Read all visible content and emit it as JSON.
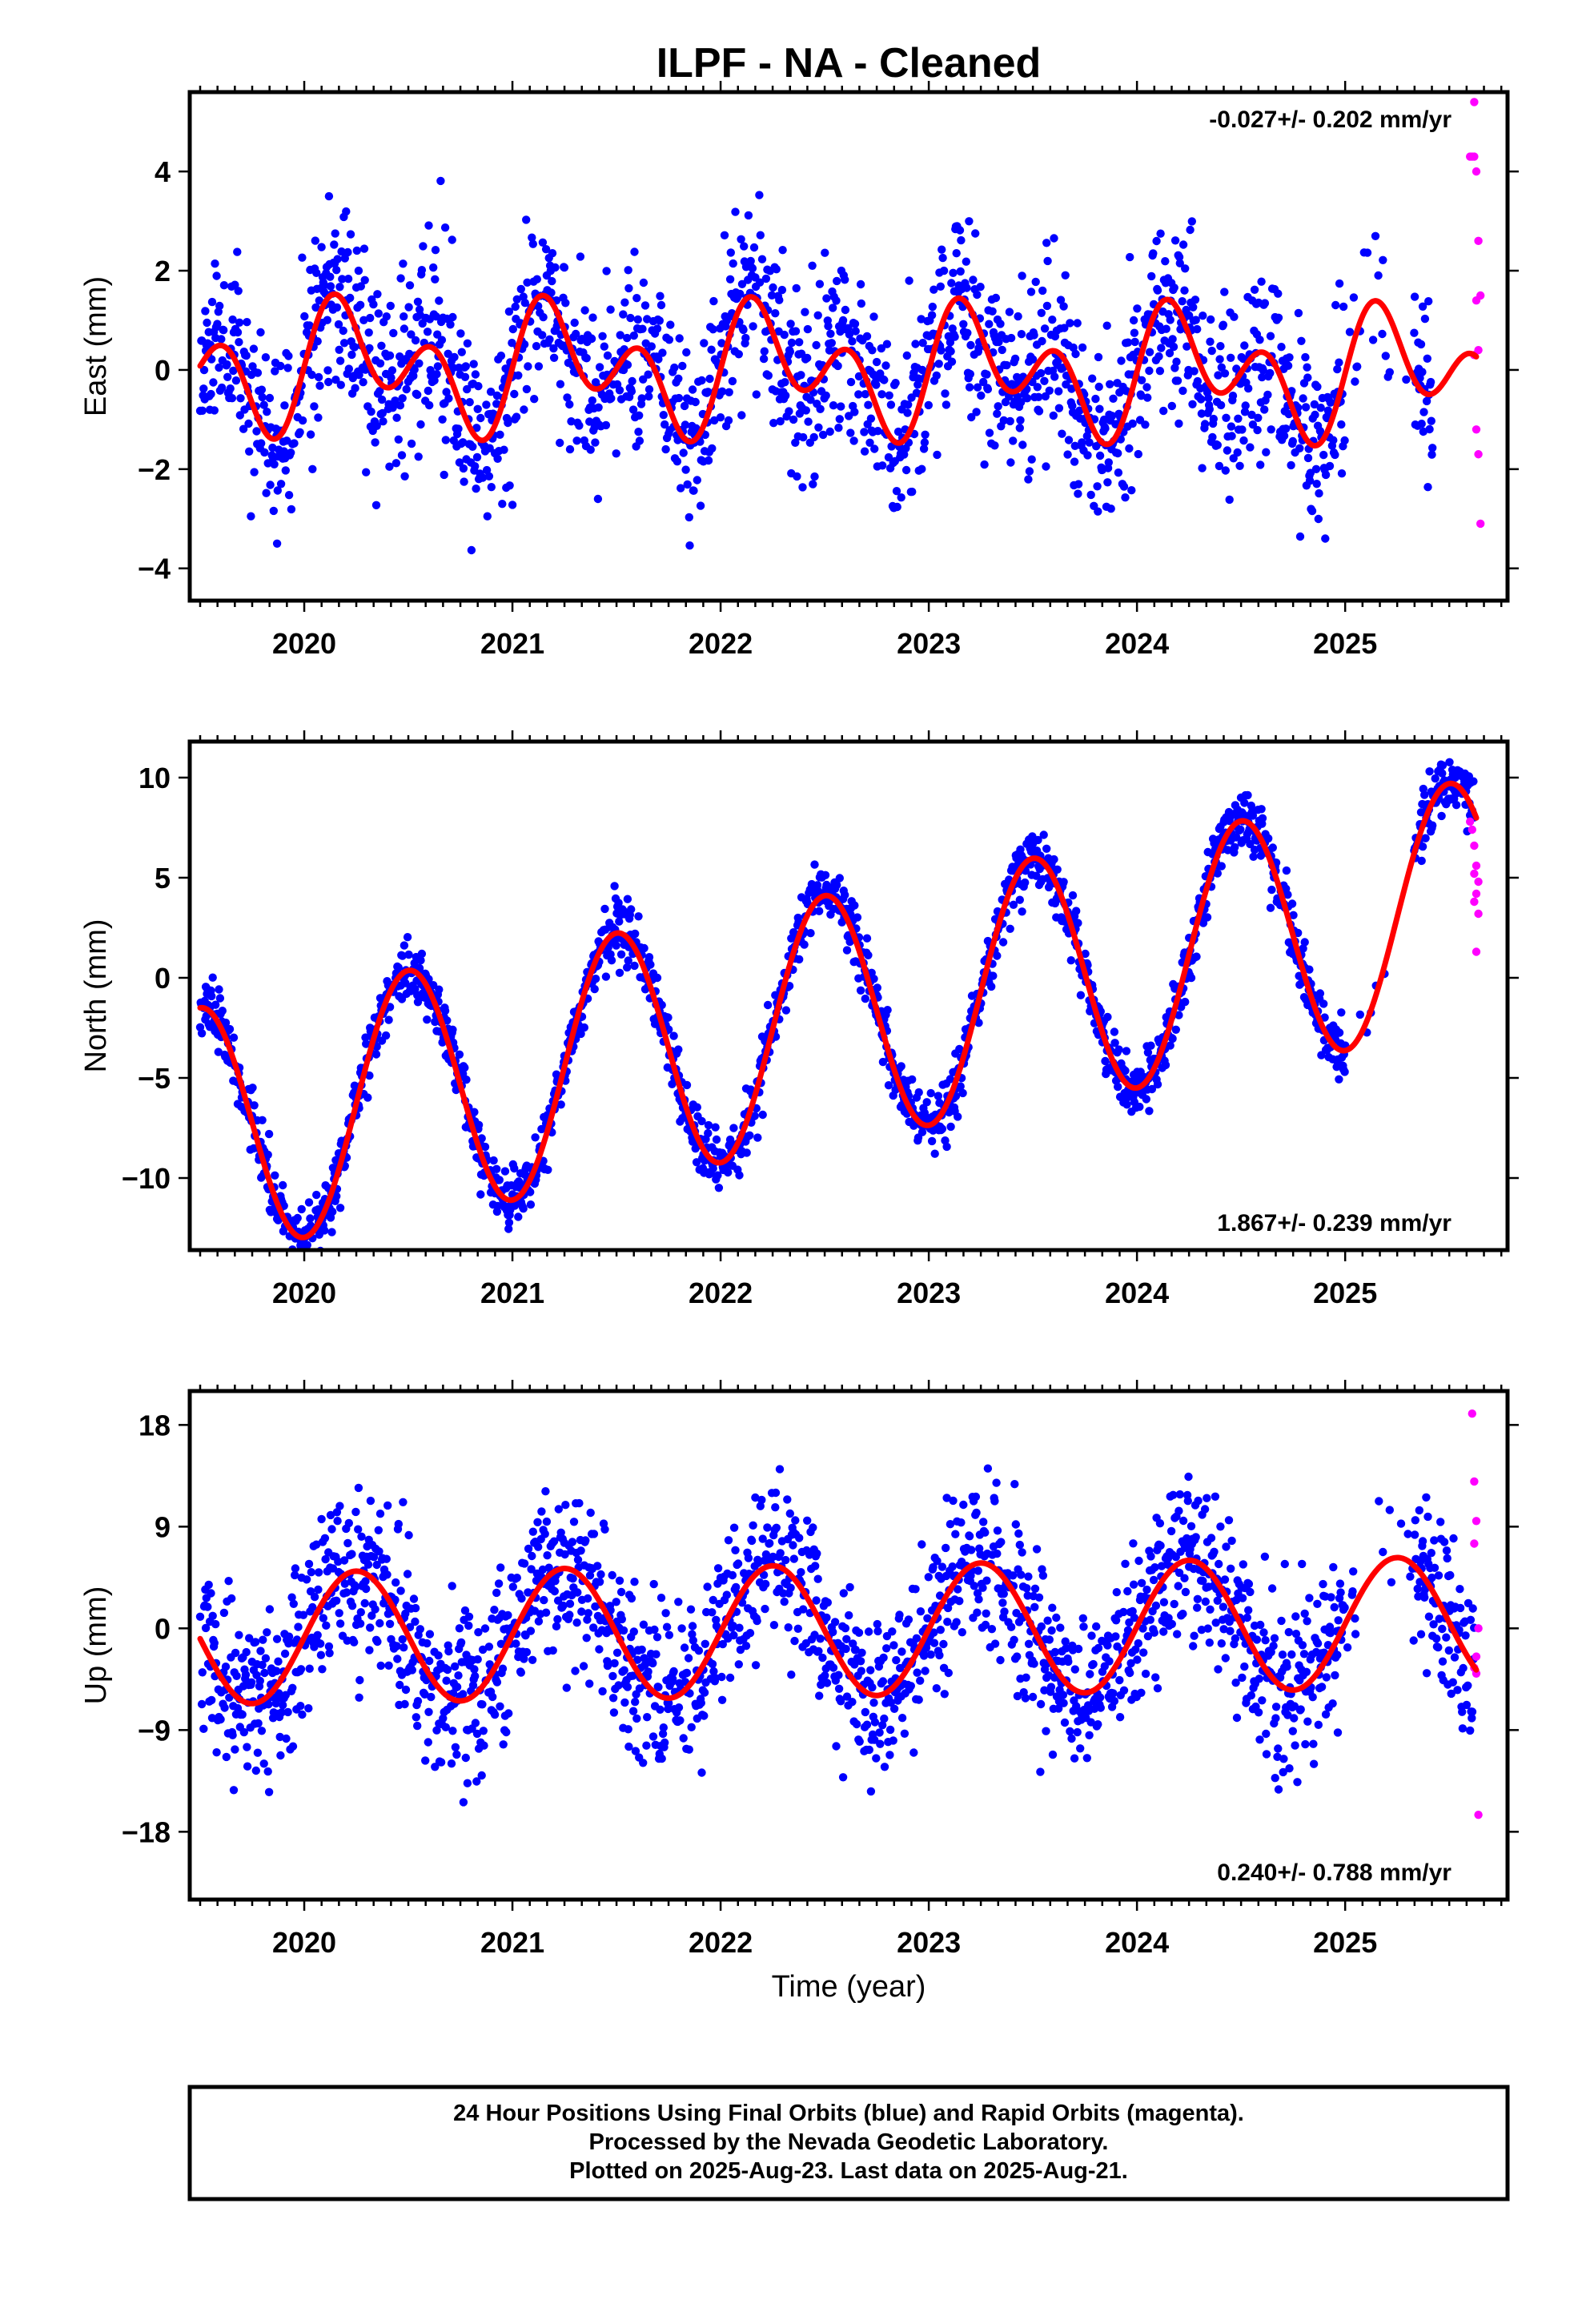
{
  "figure": {
    "title": "ILPF  - NA - Cleaned",
    "xlabel": "Time (year)"
  },
  "chart_data": [
    {
      "type": "scatter",
      "ylabel": "East (mm)",
      "rate_text": "-0.027+/- 0.202 mm/yr",
      "rate_position": "top-right",
      "xlim": [
        2019.45,
        2025.78
      ],
      "ylim": [
        -4.65,
        5.6
      ],
      "xticks": [
        2020,
        2021,
        2022,
        2023,
        2024,
        2025
      ],
      "xticklabels": [
        "2020",
        "2021",
        "2022",
        "2023",
        "2024",
        "2025"
      ],
      "yticks": [
        -4,
        -2,
        0,
        2,
        4
      ],
      "yticklabels": [
        "−4",
        "−2",
        "0",
        "2",
        "4"
      ],
      "grid": false,
      "series": [
        {
          "role": "final",
          "color": "#0000ff",
          "model": {
            "start": 2019.5,
            "end": 2025.42,
            "trend": -0.027,
            "offset": 0.0,
            "annual": [
              0.0,
              0.75
            ],
            "semiannual": [
              0.0,
              0.9
            ],
            "noise_sd": 0.95,
            "seed": 11
          }
        },
        {
          "role": "rapid",
          "color": "#ff00ff",
          "x": [
            2025.6,
            2025.61,
            2025.62,
            2025.63,
            2025.62,
            2025.64,
            2025.65,
            2025.63,
            2025.64,
            2025.62,
            2025.63,
            2025.64,
            2025.65
          ],
          "y": [
            4.3,
            4.3,
            4.3,
            4.0,
            5.4,
            2.6,
            1.5,
            1.4,
            0.4,
            0.3,
            -1.2,
            -1.7,
            -3.1
          ]
        },
        {
          "role": "fit",
          "color": "#ff0000",
          "x": [
            2019.5,
            2025.63
          ],
          "model": {
            "trend": -0.027,
            "offset": 0.0,
            "annual": [
              0.0,
              0.75
            ],
            "semiannual": [
              0.0,
              0.9
            ]
          }
        }
      ]
    },
    {
      "type": "scatter",
      "ylabel": "North (mm)",
      "rate_text": "1.867+/- 0.239 mm/yr",
      "rate_position": "bottom-right",
      "xlim": [
        2019.45,
        2025.78
      ],
      "ylim": [
        -13.6,
        11.8
      ],
      "xticks": [
        2020,
        2021,
        2022,
        2023,
        2024,
        2025
      ],
      "xticklabels": [
        "2020",
        "2021",
        "2022",
        "2023",
        "2024",
        "2025"
      ],
      "yticks": [
        -10,
        -5,
        0,
        5,
        10
      ],
      "yticklabels": [
        "−10",
        "−5",
        "0",
        "5",
        "10"
      ],
      "grid": false,
      "series": [
        {
          "role": "final",
          "color": "#0000ff",
          "model": {
            "start": 2019.5,
            "end": 2025.62,
            "trend": 1.867,
            "offset": -2.1,
            "annual": [
              -6.2,
              0.0
            ],
            "semiannual": [
              0.0,
              0.0
            ],
            "noise_sd": 0.75,
            "seed": 23
          }
        },
        {
          "role": "rapid",
          "color": "#ff00ff",
          "x": [
            2025.6,
            2025.61,
            2025.62,
            2025.63,
            2025.62,
            2025.64,
            2025.63,
            2025.62,
            2025.64,
            2025.63
          ],
          "y": [
            7.8,
            7.4,
            6.6,
            5.6,
            5.2,
            4.8,
            4.2,
            3.8,
            3.2,
            1.3
          ]
        },
        {
          "role": "fit",
          "color": "#ff0000",
          "x": [
            2019.5,
            2025.63
          ],
          "model": {
            "trend": 1.867,
            "offset": -2.1,
            "annual": [
              -6.2,
              0.0
            ],
            "semiannual": [
              0.0,
              0.0
            ]
          }
        }
      ]
    },
    {
      "type": "scatter",
      "ylabel": "Up (mm)",
      "rate_text": "0.240+/- 0.788 mm/yr",
      "rate_position": "bottom-right",
      "xlim": [
        2019.45,
        2025.78
      ],
      "ylim": [
        -24.0,
        21.0
      ],
      "xticks": [
        2020,
        2021,
        2022,
        2023,
        2024,
        2025
      ],
      "xticklabels": [
        "2020",
        "2021",
        "2022",
        "2023",
        "2024",
        "2025"
      ],
      "yticks": [
        -18,
        -9,
        0,
        9,
        18
      ],
      "yticklabels": [
        "−18",
        "−9",
        "0",
        "9",
        "18"
      ],
      "grid": false,
      "series": [
        {
          "role": "final",
          "color": "#0000ff",
          "model": {
            "start": 2019.5,
            "end": 2025.62,
            "trend": 0.24,
            "offset": -0.2,
            "annual": [
              0.0,
              5.8
            ],
            "semiannual": [
              0.0,
              0.0
            ],
            "noise_sd": 3.6,
            "seed": 37
          }
        },
        {
          "role": "rapid",
          "color": "#ff00ff",
          "x": [
            2025.61,
            2025.62,
            2025.63,
            2025.62,
            2025.64,
            2025.63,
            2025.62,
            2025.63,
            2025.64
          ],
          "y": [
            19.0,
            13.0,
            9.5,
            7.5,
            0.0,
            -2.5,
            -3.5,
            -4.0,
            -16.5
          ]
        },
        {
          "role": "fit",
          "color": "#ff0000",
          "x": [
            2019.5,
            2025.63
          ],
          "model": {
            "trend": 0.24,
            "offset": -0.2,
            "annual": [
              0.0,
              5.8
            ],
            "semiannual": [
              0.0,
              0.0
            ]
          }
        }
      ]
    }
  ],
  "footer": {
    "line1": "24 Hour Positions Using Final Orbits (blue) and Rapid Orbits (magenta).",
    "line2": "Processed by the Nevada Geodetic Laboratory.",
    "line3": "Plotted on 2025-Aug-23. Last data on 2025-Aug-21."
  }
}
